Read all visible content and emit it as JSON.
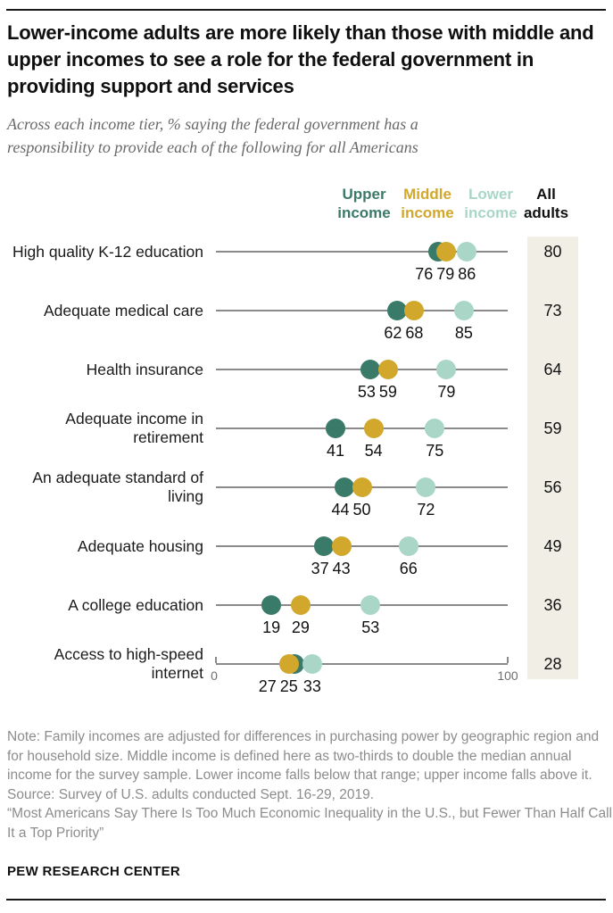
{
  "header": {
    "title": "Lower-income adults are more likely than those with middle and upper incomes to see a role for the federal government in providing support and services",
    "subtitle": "Across each income tier, % saying the federal government has a responsibility to provide each of the following for all Americans"
  },
  "legend": {
    "columns": [
      {
        "label": "Upper income",
        "color": "#3a7a68"
      },
      {
        "label": "Middle income",
        "color": "#d1a72c"
      },
      {
        "label": "Lower income",
        "color": "#a9d6c6"
      },
      {
        "label": "All adults",
        "color": "#111111"
      }
    ]
  },
  "chart_data": {
    "type": "scatter",
    "title": "Lower-income adults are more likely than those with middle and upper incomes to see a role for the federal government in providing support and services",
    "subtitle": "Across each income tier, % saying the federal government has a responsibility to provide each of the following for all Americans",
    "categories": [
      "High quality K-12 education",
      "Adequate medical care",
      "Health insurance",
      "Adequate income in retirement",
      "An adequate standard of living",
      "Adequate housing",
      "A college education",
      "Access to high-speed internet"
    ],
    "series": [
      {
        "name": "Upper income",
        "color": "#3a7a68",
        "values": [
          76,
          62,
          53,
          41,
          44,
          37,
          19,
          27
        ]
      },
      {
        "name": "Middle income",
        "color": "#d1a72c",
        "values": [
          79,
          68,
          59,
          54,
          50,
          43,
          29,
          25
        ]
      },
      {
        "name": "Lower income",
        "color": "#a9d6c6",
        "values": [
          86,
          85,
          79,
          75,
          72,
          66,
          53,
          33
        ]
      },
      {
        "name": "All adults",
        "values": [
          80,
          73,
          64,
          59,
          56,
          49,
          36,
          28
        ]
      }
    ],
    "xlim": [
      0,
      100
    ],
    "axis_ticks": [
      "0",
      "100"
    ],
    "grid": false,
    "legend_position": "top-right",
    "all_adults_column_bg": "#f0eee5",
    "axis_line_color": "#8a8a8a"
  },
  "footer": {
    "note": "Note: Family incomes are adjusted for differences in purchasing power by geographic region and for household size. Middle income is defined here as two-thirds to double the median annual income for the survey sample. Lower income falls below that range; upper income falls above it.",
    "source": "Source: Survey of U.S. adults conducted Sept. 16-29, 2019.",
    "report": "“Most Americans Say There Is Too Much Economic Inequality in the U.S., but Fewer Than Half Call It a Top Priority”",
    "brand": "PEW RESEARCH CENTER"
  }
}
